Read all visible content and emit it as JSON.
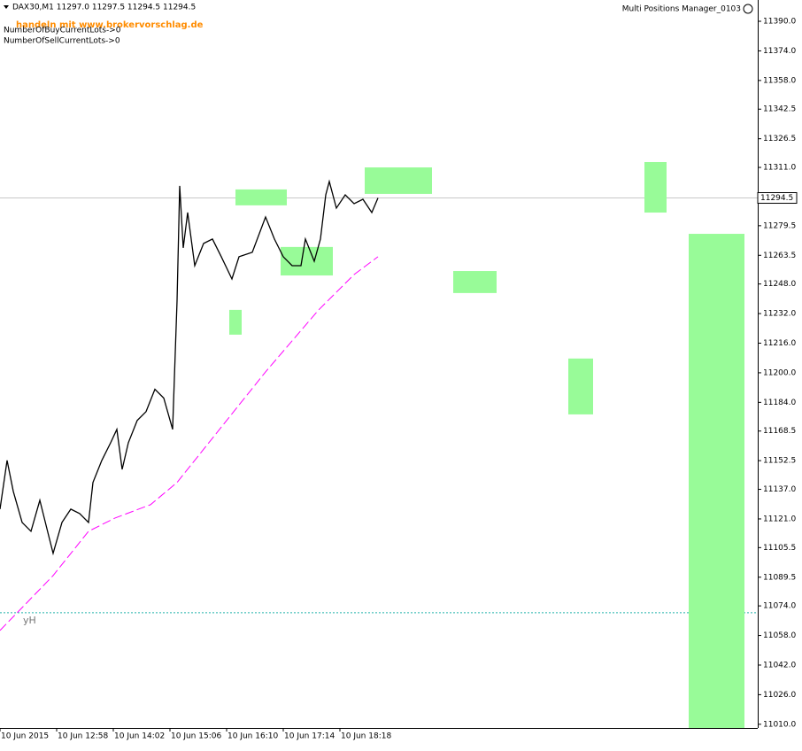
{
  "chart_data": {
    "type": "line",
    "header": "DAX30,M1  11297.0 11297.5 11294.5 11294.5",
    "watermark": "handeln mit www.brokervorschlag.de",
    "buy_lots": "NumberOfBuyCurrentLots->0",
    "sell_lots": "NumberOfSellCurrentLots->0",
    "indicator_name": "Multi Positions Manager_0103",
    "current_price": 11294.5,
    "level_label": "yH",
    "level_value": 11070.3,
    "xlim": [
      714,
      1570
    ],
    "ylim": [
      11008,
      11401.5
    ],
    "xticks": [
      {
        "value": 714,
        "label": "10 Jun 2015"
      },
      {
        "value": 778,
        "label": "10 Jun 12:58"
      },
      {
        "value": 842,
        "label": "10 Jun 14:02"
      },
      {
        "value": 906,
        "label": "10 Jun 15:06"
      },
      {
        "value": 970,
        "label": "10 Jun 16:10"
      },
      {
        "value": 1034,
        "label": "10 Jun 17:14"
      },
      {
        "value": 1098,
        "label": "10 Jun 18:18"
      }
    ],
    "yticks": [
      {
        "value": 11390,
        "label": "11390.0"
      },
      {
        "value": 11374,
        "label": "11374.0"
      },
      {
        "value": 11358,
        "label": "11358.0"
      },
      11342.5,
      11326.5,
      {
        "value": 11311,
        "label": "11311.0"
      },
      11279.5,
      11263.5,
      {
        "value": 11248,
        "label": "11248.0"
      },
      {
        "value": 11232,
        "label": "11232.0"
      },
      {
        "value": 11216,
        "label": "11216.0"
      },
      {
        "value": 11200,
        "label": "11200.0"
      },
      {
        "value": 11184,
        "label": "11184.0"
      },
      11168.5,
      11152.5,
      {
        "value": 11137,
        "label": "11137.0"
      },
      {
        "value": 11121,
        "label": "11121.0"
      },
      11105.5,
      11089.5,
      {
        "value": 11074,
        "label": "11074.0"
      },
      {
        "value": 11058,
        "label": "11058.0"
      },
      {
        "value": 11042,
        "label": "11042.0"
      },
      {
        "value": 11026,
        "label": "11026.0"
      },
      {
        "value": 11010,
        "label": "11010.0"
      }
    ],
    "series": [
      {
        "color": "#000000",
        "x": [
          714,
          722,
          729,
          739,
          749,
          759,
          769,
          774,
          784,
          794,
          804,
          814,
          819,
          829,
          839,
          846,
          852,
          859,
          869,
          879,
          889,
          899,
          909,
          914,
          917,
          921,
          926,
          934,
          944,
          954,
          964,
          976,
          984,
          999,
          1014,
          1024,
          1034,
          1044,
          1054,
          1059,
          1069,
          1076,
          1082,
          1086,
          1094,
          1104,
          1114,
          1124,
          1134,
          1141
        ],
        "values": [
          11126.3,
          11152.6,
          11135.9,
          11119.1,
          11114.3,
          11131.1,
          11111.9,
          11102.4,
          11119.1,
          11126.3,
          11123.9,
          11119.1,
          11140.7,
          11152.6,
          11162.2,
          11169.4,
          11147.8,
          11162.2,
          11174.2,
          11179.0,
          11191.1,
          11186.3,
          11169.4,
          11238.8,
          11301.0,
          11267.5,
          11286.6,
          11257.9,
          11269.9,
          11272.3,
          11262.7,
          11250.7,
          11262.7,
          11265.1,
          11284.2,
          11272.3,
          11262.7,
          11257.9,
          11257.9,
          11272.3,
          11260.3,
          11272.3,
          11296.2,
          11303.4,
          11289.0,
          11296.2,
          11291.4,
          11293.8,
          11286.6,
          11294.5
        ]
      },
      {
        "color": "#ff00ff",
        "x": [
          714,
          774,
          814,
          844,
          884,
          914,
          974,
          1014,
          1074,
          1114,
          1141
        ],
        "values": [
          11060.7,
          11090.4,
          11114.3,
          11121.5,
          11128.7,
          11140.7,
          11176.6,
          11200.5,
          11234.0,
          11253.1,
          11262.7
        ]
      }
    ],
    "rect_color": "#98fb98",
    "rectangles": [
      {
        "x": [
          980,
          1038
        ],
        "y": [
          11299.1,
          11290.5
        ]
      },
      {
        "x": [
          1126,
          1202
        ],
        "y": [
          11311.0,
          11296.7
        ]
      },
      {
        "x": [
          1031,
          1090
        ],
        "y": [
          11268.0,
          11252.6
        ]
      },
      {
        "x": [
          973,
          987
        ],
        "y": [
          11234.0,
          11220.6
        ]
      },
      {
        "x": [
          1226,
          1275
        ],
        "y": [
          11255.0,
          11243.1
        ]
      },
      {
        "x": [
          1356,
          1384
        ],
        "y": [
          11207.7,
          11177.5
        ]
      },
      {
        "x": [
          1442,
          1467
        ],
        "y": [
          11313.9,
          11286.6
        ]
      },
      {
        "x": [
          1492,
          1555
        ],
        "y": [
          11275.1,
          11008
        ]
      }
    ]
  }
}
